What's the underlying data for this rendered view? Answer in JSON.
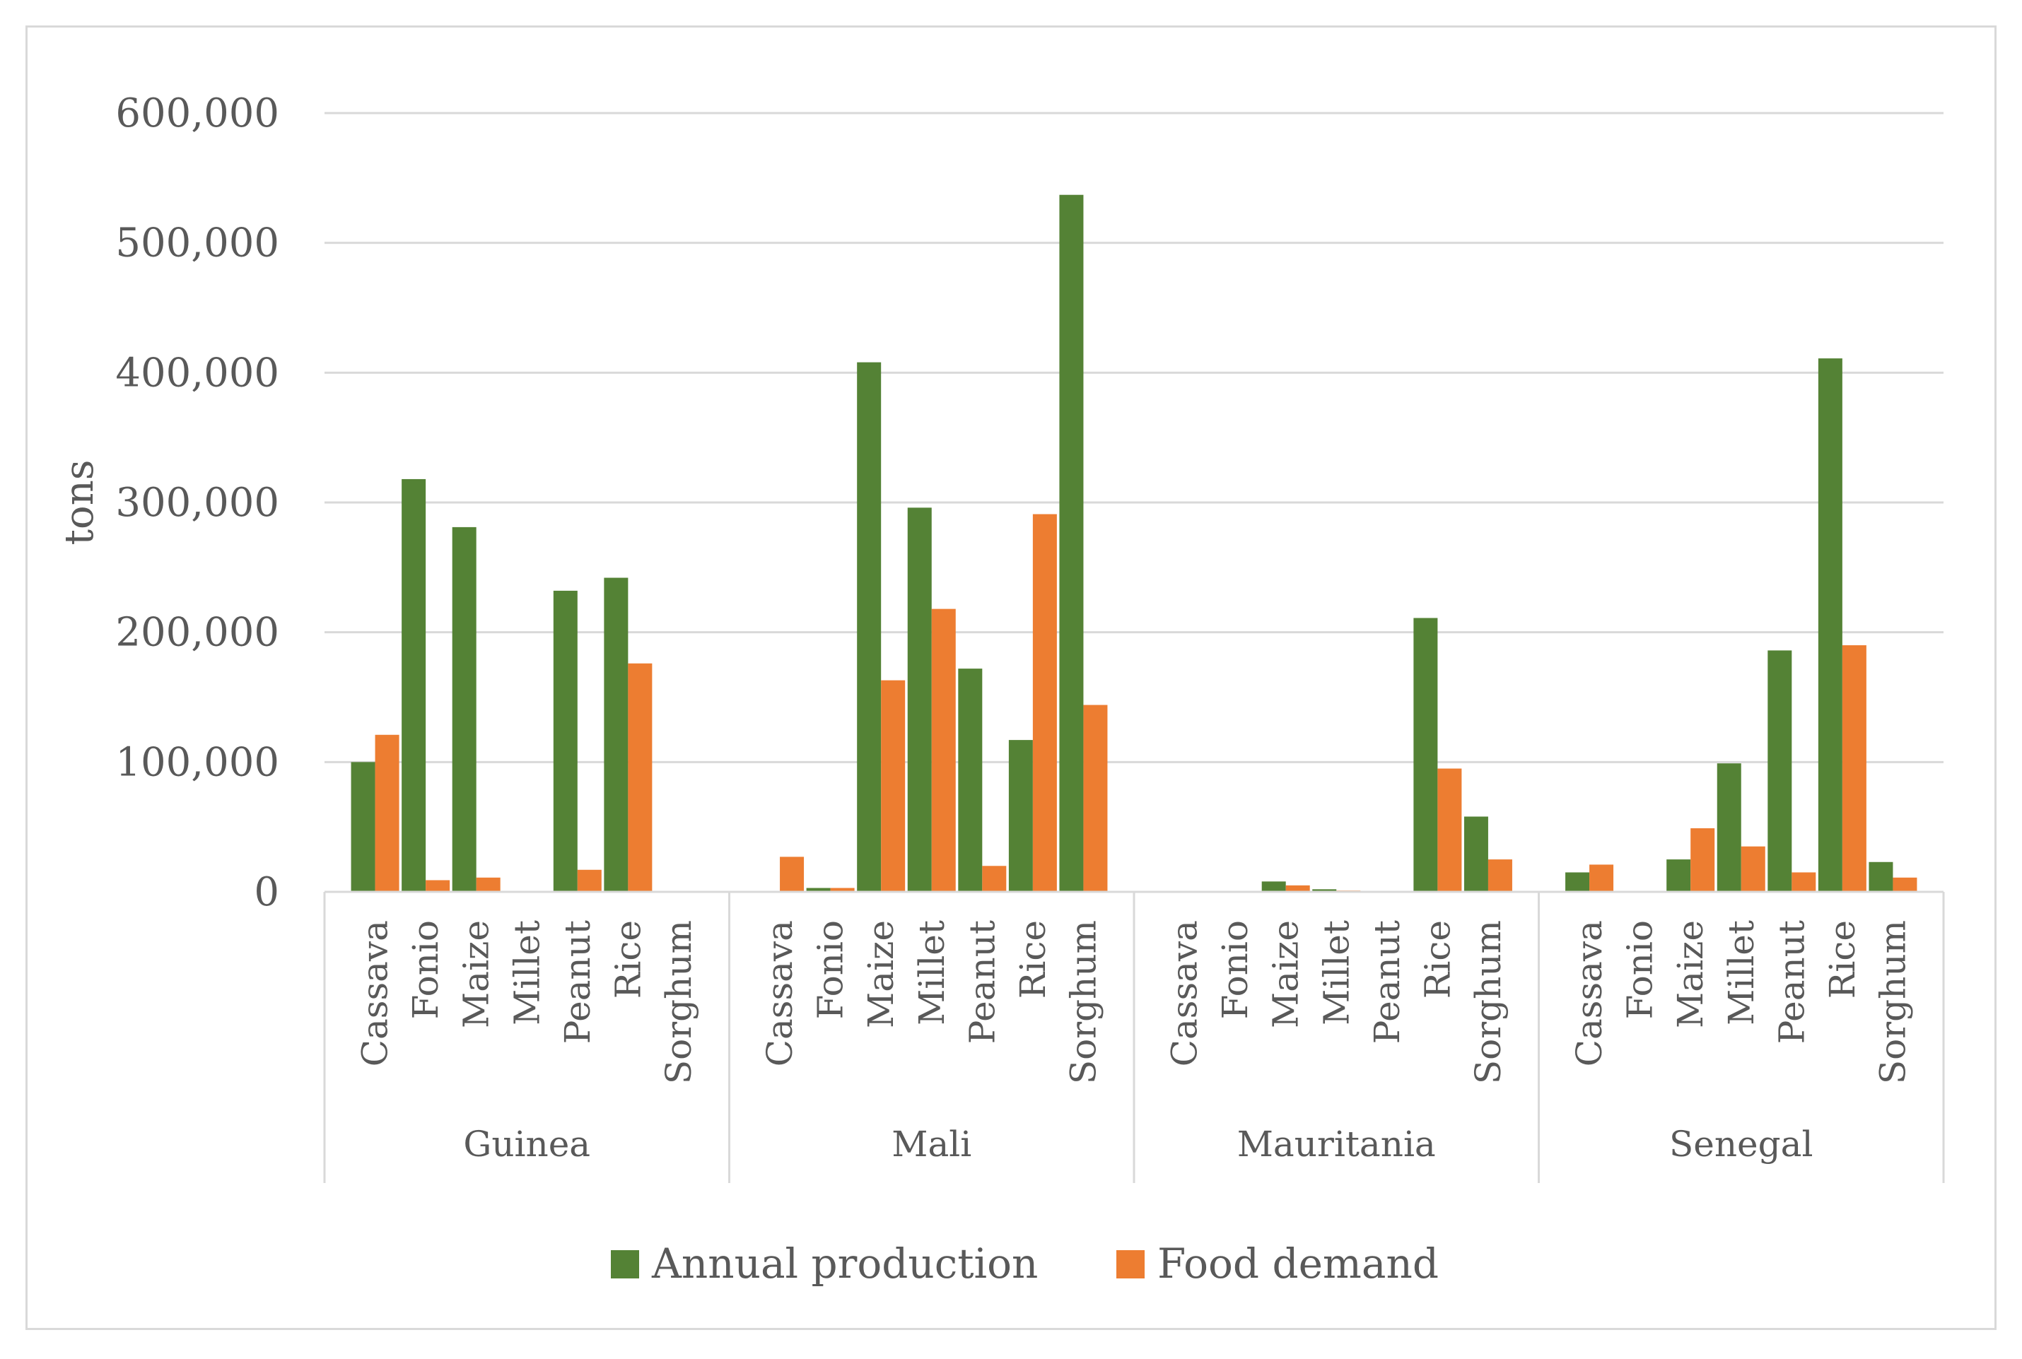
{
  "chart_data": {
    "type": "bar",
    "title": "",
    "xlabel": "",
    "ylabel": "tons",
    "ylim": [
      0,
      600000
    ],
    "yticks": [
      0,
      100000,
      200000,
      300000,
      400000,
      500000,
      600000
    ],
    "ytick_labels": [
      "0",
      "100,000",
      "200,000",
      "300,000",
      "400,000",
      "500,000",
      "600,000"
    ],
    "grid": true,
    "legend_position": "bottom",
    "groups": [
      "Guinea",
      "Mali",
      "Mauritania",
      "Senegal"
    ],
    "categories": [
      "Cassava",
      "Fonio",
      "Maize",
      "Millet",
      "Peanut",
      "Rice",
      "Sorghum"
    ],
    "series": [
      {
        "name": "Annual production",
        "color": "#548235",
        "values": [
          [
            100000,
            318000,
            281000,
            0,
            232000,
            242000,
            0
          ],
          [
            0,
            3000,
            408000,
            296000,
            172000,
            117000,
            537000
          ],
          [
            0,
            0,
            8000,
            2000,
            0,
            211000,
            58000
          ],
          [
            15000,
            0,
            25000,
            99000,
            186000,
            411000,
            23000
          ]
        ]
      },
      {
        "name": "Food demand",
        "color": "#ED7D31",
        "values": [
          [
            121000,
            9000,
            11000,
            0,
            17000,
            176000,
            0
          ],
          [
            27000,
            3000,
            163000,
            218000,
            20000,
            291000,
            144000
          ],
          [
            0,
            0,
            5000,
            1000,
            0,
            95000,
            25000
          ],
          [
            21000,
            0,
            49000,
            35000,
            15000,
            190000,
            11000
          ]
        ]
      }
    ]
  }
}
